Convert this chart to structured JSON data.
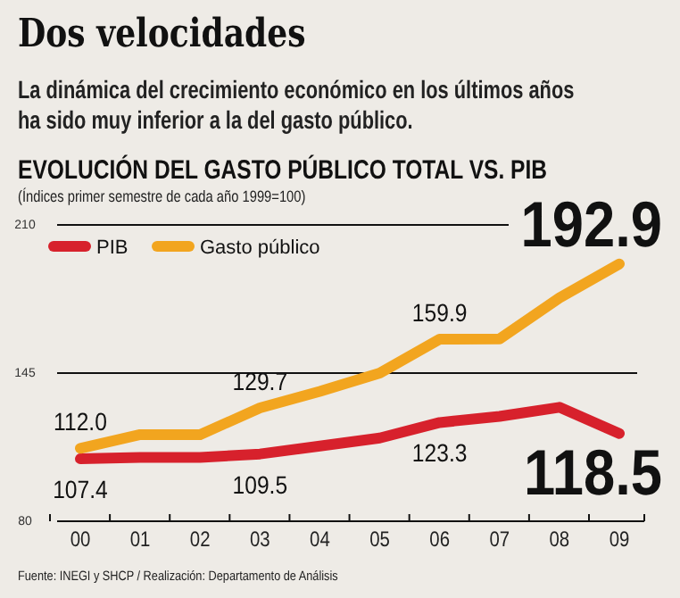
{
  "chart_data": {
    "type": "line",
    "title": "Dos velocidades",
    "subtitle": "La dinámica del crecimiento económico en los últimos años ha sido muy inferior a la del gasto público.",
    "annotations": [
      "EVOLUCIÓN DEL GASTO PÚBLICO TOTAL VS. PIB",
      "(Índices primer semestre de cada año 1999=100)",
      "Fuente: INEGI y SHCP / Realización: Departamento de Análisis"
    ],
    "categories": [
      "00",
      "01",
      "02",
      "03",
      "04",
      "05",
      "06",
      "07",
      "08",
      "09"
    ],
    "series": [
      {
        "name": "PIB",
        "color": "#d7212c",
        "values": [
          107.4,
          108,
          108,
          109.5,
          113,
          116.5,
          123.3,
          126,
          130,
          118.5
        ],
        "value_labels": [
          "107.4",
          null,
          null,
          "109.5",
          null,
          null,
          "123.3",
          null,
          null,
          "118.5"
        ]
      },
      {
        "name": "Gasto público",
        "color": "#f2a51f",
        "values": [
          112.0,
          118,
          118,
          129.7,
          137,
          145,
          159.9,
          160,
          178,
          192.9
        ],
        "value_labels": [
          "112.0",
          null,
          null,
          "129.7",
          null,
          null,
          "159.9",
          null,
          null,
          "192.9"
        ]
      }
    ],
    "ylim": [
      80,
      210
    ],
    "yticks": [
      80,
      145,
      210
    ],
    "grid": "y",
    "legend": "top left"
  }
}
